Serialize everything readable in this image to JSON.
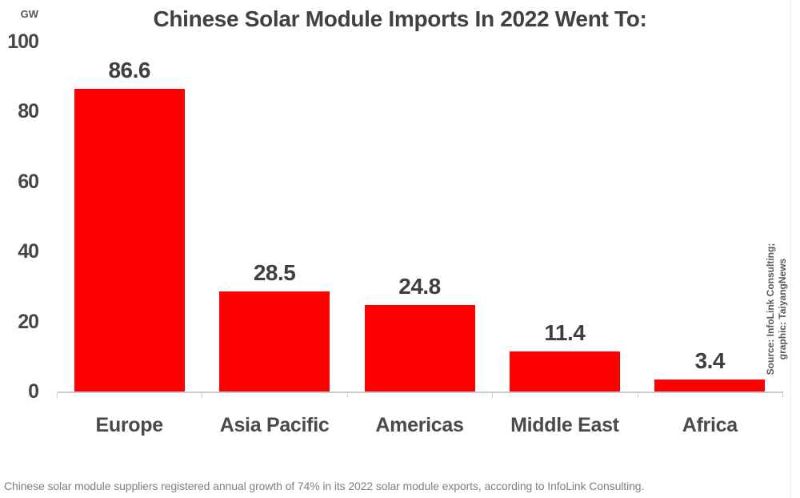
{
  "chart_data": {
    "type": "bar",
    "title": "Chinese Solar Module Imports In 2022 Went To:",
    "unit_label": "GW",
    "categories": [
      "Europe",
      "Asia Pacific",
      "Americas",
      "Middle East",
      "Africa"
    ],
    "values": [
      86.6,
      28.5,
      24.8,
      11.4,
      3.4
    ],
    "ylim": [
      0,
      100
    ],
    "yticks": [
      0,
      20,
      40,
      60,
      80,
      100
    ],
    "bar_color": "#FE0000",
    "grid": false,
    "value_labels": true,
    "legend": "none"
  },
  "source_note": {
    "line1": "Source: InfoLink Consulting;",
    "line2": "graphic: TaiyangNews"
  },
  "caption": "Chinese solar module suppliers registered annual growth of 74% in its 2022 solar module exports, according to InfoLink Consulting.",
  "colors": {
    "bar": "#FE0000",
    "title_text": "#414141",
    "label_text": "#3F3F3F",
    "caption_text": "#7F7F7F",
    "source_text": "#595959",
    "axis_line": "#CCCCCC"
  }
}
